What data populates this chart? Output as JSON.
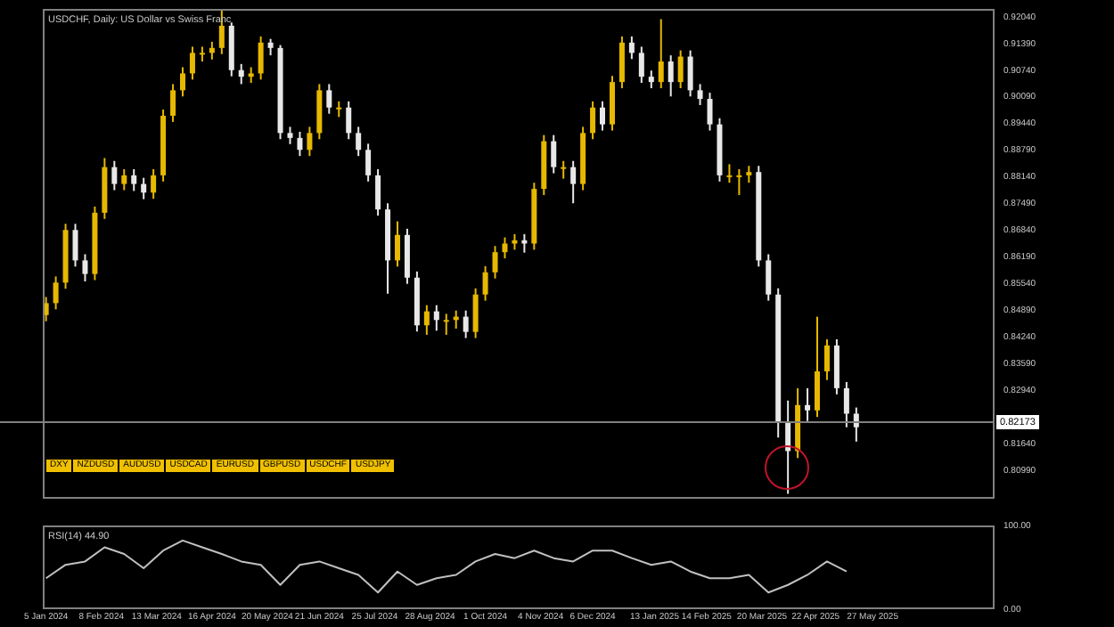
{
  "chart_data": [
    {
      "type": "candlestick",
      "title": "USDCHF, Daily: US Dollar vs Swiss Franc",
      "x": [
        "2024-01-05",
        "2024-01-11",
        "2024-01-17",
        "2024-01-23",
        "2024-01-29",
        "2024-02-04",
        "2024-02-10",
        "2024-02-16",
        "2024-02-22",
        "2024-02-28",
        "2024-03-05",
        "2024-03-11",
        "2024-03-17",
        "2024-03-23",
        "2024-03-29",
        "2024-04-04",
        "2024-04-10",
        "2024-04-16",
        "2024-04-22",
        "2024-04-28",
        "2024-05-04",
        "2024-05-10",
        "2024-05-16",
        "2024-05-22",
        "2024-05-28",
        "2024-06-03",
        "2024-06-09",
        "2024-06-15",
        "2024-06-21",
        "2024-06-27",
        "2024-07-03",
        "2024-07-09",
        "2024-07-15",
        "2024-07-21",
        "2024-07-27",
        "2024-08-02",
        "2024-08-08",
        "2024-08-14",
        "2024-08-20",
        "2024-08-26",
        "2024-09-01",
        "2024-09-07",
        "2024-09-13",
        "2024-09-19",
        "2024-09-25",
        "2024-10-01",
        "2024-10-07",
        "2024-10-13",
        "2024-10-19",
        "2024-10-25",
        "2024-10-31",
        "2024-11-06",
        "2024-11-12",
        "2024-11-18",
        "2024-11-24",
        "2024-11-30",
        "2024-12-06",
        "2024-12-12",
        "2024-12-18",
        "2024-12-24",
        "2024-12-30",
        "2025-01-05",
        "2025-01-11",
        "2025-01-17",
        "2025-01-23",
        "2025-01-29",
        "2025-02-04",
        "2025-02-10",
        "2025-02-16",
        "2025-02-22",
        "2025-02-28",
        "2025-03-06",
        "2025-03-12",
        "2025-03-18",
        "2025-03-24",
        "2025-03-30",
        "2025-04-05",
        "2025-04-11",
        "2025-04-17",
        "2025-04-23",
        "2025-04-29",
        "2025-05-05",
        "2025-05-11",
        "2025-05-17"
      ],
      "ohlc": [
        [
          0.8478,
          0.8522,
          0.8463,
          0.8507
        ],
        [
          0.8507,
          0.8572,
          0.8492,
          0.8557
        ],
        [
          0.8557,
          0.87,
          0.8542,
          0.8685
        ],
        [
          0.8685,
          0.87,
          0.8596,
          0.8611
        ],
        [
          0.8611,
          0.8626,
          0.856,
          0.8578
        ],
        [
          0.8578,
          0.8742,
          0.8563,
          0.8727
        ],
        [
          0.8727,
          0.886,
          0.8712,
          0.8838
        ],
        [
          0.8838,
          0.8853,
          0.8782,
          0.8797
        ],
        [
          0.8797,
          0.8833,
          0.8782,
          0.8818
        ],
        [
          0.8818,
          0.8833,
          0.878,
          0.8797
        ],
        [
          0.8797,
          0.8812,
          0.876,
          0.8776
        ],
        [
          0.8776,
          0.8833,
          0.8761,
          0.8818
        ],
        [
          0.8818,
          0.8978,
          0.8803,
          0.8963
        ],
        [
          0.8963,
          0.904,
          0.8948,
          0.9025
        ],
        [
          0.9025,
          0.9081,
          0.901,
          0.9066
        ],
        [
          0.9066,
          0.9131,
          0.9051,
          0.9116
        ],
        [
          0.9116,
          0.9131,
          0.9095,
          0.9116
        ],
        [
          0.9116,
          0.9143,
          0.91,
          0.9128
        ],
        [
          0.9128,
          0.9219,
          0.9113,
          0.9182
        ],
        [
          0.9182,
          0.919,
          0.9059,
          0.9074
        ],
        [
          0.9074,
          0.9089,
          0.904,
          0.9058
        ],
        [
          0.9058,
          0.9081,
          0.9043,
          0.9066
        ],
        [
          0.9066,
          0.9156,
          0.9051,
          0.9141
        ],
        [
          0.9141,
          0.915,
          0.911,
          0.9128
        ],
        [
          0.9128,
          0.9135,
          0.8906,
          0.8921
        ],
        [
          0.8921,
          0.8936,
          0.8894,
          0.8909
        ],
        [
          0.8909,
          0.8924,
          0.8865,
          0.888
        ],
        [
          0.888,
          0.8936,
          0.8865,
          0.8921
        ],
        [
          0.8921,
          0.904,
          0.8906,
          0.9025
        ],
        [
          0.9025,
          0.904,
          0.8968,
          0.8983
        ],
        [
          0.8983,
          0.8998,
          0.896,
          0.8983
        ],
        [
          0.8983,
          0.8998,
          0.8906,
          0.8921
        ],
        [
          0.8921,
          0.8936,
          0.8865,
          0.888
        ],
        [
          0.888,
          0.8895,
          0.8803,
          0.8818
        ],
        [
          0.8818,
          0.8833,
          0.872,
          0.8735
        ],
        [
          0.8735,
          0.875,
          0.853,
          0.8611
        ],
        [
          0.8611,
          0.8706,
          0.8596,
          0.8673
        ],
        [
          0.8673,
          0.8688,
          0.8554,
          0.8569
        ],
        [
          0.8569,
          0.8584,
          0.8438,
          0.8453
        ],
        [
          0.8453,
          0.8502,
          0.843,
          0.8487
        ],
        [
          0.8487,
          0.8502,
          0.844,
          0.8466
        ],
        [
          0.8466,
          0.8481,
          0.843,
          0.8466
        ],
        [
          0.8466,
          0.8489,
          0.8445,
          0.8474
        ],
        [
          0.8474,
          0.8489,
          0.8422,
          0.8437
        ],
        [
          0.8437,
          0.8543,
          0.8422,
          0.8528
        ],
        [
          0.8528,
          0.8597,
          0.8513,
          0.8582
        ],
        [
          0.8582,
          0.8646,
          0.8567,
          0.8631
        ],
        [
          0.8631,
          0.8667,
          0.8616,
          0.8652
        ],
        [
          0.8652,
          0.8675,
          0.8637,
          0.866
        ],
        [
          0.866,
          0.8675,
          0.863,
          0.8652
        ],
        [
          0.8652,
          0.88,
          0.8637,
          0.8785
        ],
        [
          0.8785,
          0.8916,
          0.877,
          0.8901
        ],
        [
          0.8901,
          0.8916,
          0.8823,
          0.8838
        ],
        [
          0.8838,
          0.8853,
          0.881,
          0.8838
        ],
        [
          0.8838,
          0.8853,
          0.875,
          0.8797
        ],
        [
          0.8797,
          0.8936,
          0.8782,
          0.8921
        ],
        [
          0.8921,
          0.8998,
          0.8906,
          0.8983
        ],
        [
          0.8983,
          0.8998,
          0.8927,
          0.8942
        ],
        [
          0.8942,
          0.906,
          0.8927,
          0.9045
        ],
        [
          0.9045,
          0.9156,
          0.903,
          0.9141
        ],
        [
          0.9141,
          0.9156,
          0.9101,
          0.9116
        ],
        [
          0.9116,
          0.9131,
          0.9043,
          0.9058
        ],
        [
          0.9058,
          0.9073,
          0.903,
          0.9045
        ],
        [
          0.9045,
          0.9198,
          0.903,
          0.9095
        ],
        [
          0.9095,
          0.911,
          0.901,
          0.9045
        ],
        [
          0.9045,
          0.9122,
          0.903,
          0.9107
        ],
        [
          0.9107,
          0.9122,
          0.901,
          0.9025
        ],
        [
          0.9025,
          0.904,
          0.8989,
          0.9004
        ],
        [
          0.9004,
          0.9019,
          0.8927,
          0.8942
        ],
        [
          0.8942,
          0.8957,
          0.8803,
          0.8818
        ],
        [
          0.8818,
          0.8845,
          0.88,
          0.8818
        ],
        [
          0.8818,
          0.8833,
          0.877,
          0.8818
        ],
        [
          0.8818,
          0.8841,
          0.88,
          0.8826
        ],
        [
          0.8826,
          0.8841,
          0.8596,
          0.8611
        ],
        [
          0.8611,
          0.8626,
          0.8513,
          0.8528
        ],
        [
          0.8528,
          0.8543,
          0.818,
          0.8217
        ],
        [
          0.8217,
          0.827,
          0.8043,
          0.8147
        ],
        [
          0.8147,
          0.83,
          0.813,
          0.8259
        ],
        [
          0.8259,
          0.83,
          0.822,
          0.8246
        ],
        [
          0.8246,
          0.8474,
          0.823,
          0.8341
        ],
        [
          0.8341,
          0.8419,
          0.832,
          0.8404
        ],
        [
          0.8404,
          0.8419,
          0.8285,
          0.83
        ],
        [
          0.83,
          0.8315,
          0.8205,
          0.8238
        ],
        [
          0.8238,
          0.8253,
          0.817,
          0.8205
        ]
      ],
      "colors": [
        "#e6b800",
        "#e6b800",
        "#e6b800",
        "#e8e8e8",
        "#e8e8e8",
        "#e6b800",
        "#e6b800",
        "#e8e8e8",
        "#e6b800",
        "#e8e8e8",
        "#e8e8e8",
        "#e6b800",
        "#e6b800",
        "#e6b800",
        "#e6b800",
        "#e6b800",
        "#e6b800",
        "#e6b800",
        "#e6b800",
        "#e8e8e8",
        "#e8e8e8",
        "#e6b800",
        "#e6b800",
        "#e8e8e8",
        "#e8e8e8",
        "#e8e8e8",
        "#e8e8e8",
        "#e6b800",
        "#e6b800",
        "#e8e8e8",
        "#e6b800",
        "#e8e8e8",
        "#e8e8e8",
        "#e8e8e8",
        "#e8e8e8",
        "#e8e8e8",
        "#e6b800",
        "#e8e8e8",
        "#e8e8e8",
        "#e6b800",
        "#e8e8e8",
        "#e6b800",
        "#e6b800",
        "#e8e8e8",
        "#e6b800",
        "#e6b800",
        "#e6b800",
        "#e6b800",
        "#e6b800",
        "#e8e8e8",
        "#e6b800",
        "#e6b800",
        "#e8e8e8",
        "#e6b800",
        "#e8e8e8",
        "#e6b800",
        "#e6b800",
        "#e8e8e8",
        "#e6b800",
        "#e6b800",
        "#e8e8e8",
        "#e8e8e8",
        "#e8e8e8",
        "#e6b800",
        "#e8e8e8",
        "#e6b800",
        "#e8e8e8",
        "#e8e8e8",
        "#e8e8e8",
        "#e8e8e8",
        "#e6b800",
        "#e6b800",
        "#e6b800",
        "#e8e8e8",
        "#e8e8e8",
        "#e8e8e8",
        "#e8e8e8",
        "#e6b800",
        "#e8e8e8",
        "#e6b800",
        "#e6b800",
        "#e8e8e8",
        "#e8e8e8",
        "#e8e8e8"
      ],
      "xlim": [
        "2024-01-03",
        "2025-08-10"
      ],
      "ylim": [
        0.8031,
        0.9223
      ],
      "yticks": [
        {
          "value": 0.8099,
          "label": "0.80990"
        },
        {
          "value": 0.8164,
          "label": "0.81640"
        },
        {
          "value": 0.8294,
          "label": "0.82940"
        },
        {
          "value": 0.8359,
          "label": "0.83590"
        },
        {
          "value": 0.8424,
          "label": "0.84240"
        },
        {
          "value": 0.8489,
          "label": "0.84890"
        },
        {
          "value": 0.8554,
          "label": "0.85540"
        },
        {
          "value": 0.8619,
          "label": "0.86190"
        },
        {
          "value": 0.8684,
          "label": "0.86840"
        },
        {
          "value": 0.8749,
          "label": "0.87490"
        },
        {
          "value": 0.8814,
          "label": "0.88140"
        },
        {
          "value": 0.8879,
          "label": "0.88790"
        },
        {
          "value": 0.8944,
          "label": "0.89440"
        },
        {
          "value": 0.9009,
          "label": "0.90090"
        },
        {
          "value": 0.9074,
          "label": "0.90740"
        },
        {
          "value": 0.9139,
          "label": "0.91390"
        },
        {
          "value": 0.9204,
          "label": "0.92040"
        }
      ],
      "tick_labels": "y",
      "ref_lines": [
        {
          "axis": "y",
          "value": 0.82173,
          "label": "0.82173",
          "color": "#808080"
        }
      ],
      "annotations": [
        "DXY",
        "NZDUSD",
        "AUDUSD",
        "USDCAD",
        "EURUSD",
        "GBPUSD",
        "USDCHF",
        "USDJPY"
      ]
    },
    {
      "type": "line",
      "title": "RSI(14) 44.90",
      "x": [
        "2024-01-05",
        "2024-01-17",
        "2024-01-29",
        "2024-02-10",
        "2024-02-22",
        "2024-03-05",
        "2024-03-17",
        "2024-03-29",
        "2024-04-10",
        "2024-04-22",
        "2024-05-04",
        "2024-05-16",
        "2024-05-28",
        "2024-06-09",
        "2024-06-21",
        "2024-07-03",
        "2024-07-15",
        "2024-07-27",
        "2024-08-08",
        "2024-08-20",
        "2024-09-01",
        "2024-09-13",
        "2024-09-25",
        "2024-10-07",
        "2024-10-19",
        "2024-10-31",
        "2024-11-12",
        "2024-11-24",
        "2024-12-06",
        "2024-12-18",
        "2024-12-30",
        "2025-01-11",
        "2025-01-23",
        "2025-02-04",
        "2025-02-16",
        "2025-02-28",
        "2025-03-12",
        "2025-03-24",
        "2025-04-05",
        "2025-04-17",
        "2025-04-29",
        "2025-05-11"
      ],
      "series": [
        {
          "color": "#c0c0c0",
          "values": [
            37,
            53,
            57,
            74,
            66,
            49,
            70,
            82,
            74,
            66,
            57,
            53,
            29,
            53,
            57,
            49,
            41,
            20,
            45,
            29,
            37,
            41,
            57,
            66,
            61,
            70,
            61,
            57,
            70,
            70,
            61,
            53,
            57,
            45,
            37,
            37,
            41,
            20,
            29,
            41,
            57,
            45
          ]
        }
      ],
      "xlim": [
        "2024-01-03",
        "2025-08-10"
      ],
      "xticks": [
        {
          "value": "2024-01-05",
          "label": "5 Jan 2024"
        },
        {
          "value": "2024-02-08",
          "label": "8 Feb 2024"
        },
        {
          "value": "2024-03-13",
          "label": "13 Mar 2024"
        },
        {
          "value": "2024-04-16",
          "label": "16 Apr 2024"
        },
        {
          "value": "2024-05-20",
          "label": "20 May 2024"
        },
        {
          "value": "2024-06-21",
          "label": "21 Jun 2024"
        },
        {
          "value": "2024-07-25",
          "label": "25 Jul 2024"
        },
        {
          "value": "2024-08-28",
          "label": "28 Aug 2024"
        },
        {
          "value": "2024-10-01",
          "label": "1 Oct 2024"
        },
        {
          "value": "2024-11-04",
          "label": "4 Nov 2024"
        },
        {
          "value": "2024-12-06",
          "label": "6 Dec 2024"
        },
        {
          "value": "2025-01-13",
          "label": "13 Jan 2025"
        },
        {
          "value": "2025-02-14",
          "label": "14 Feb 2025"
        },
        {
          "value": "2025-03-20",
          "label": "20 Mar 2025"
        },
        {
          "value": "2025-04-22",
          "label": "22 Apr 2025"
        },
        {
          "value": "2025-05-27",
          "label": "27 May 2025"
        }
      ],
      "ylim": [
        0,
        100
      ],
      "yticks": [
        {
          "value": 100,
          "label": "100.00"
        },
        {
          "value": 0,
          "label": "0.00"
        }
      ],
      "marker": "none"
    }
  ]
}
